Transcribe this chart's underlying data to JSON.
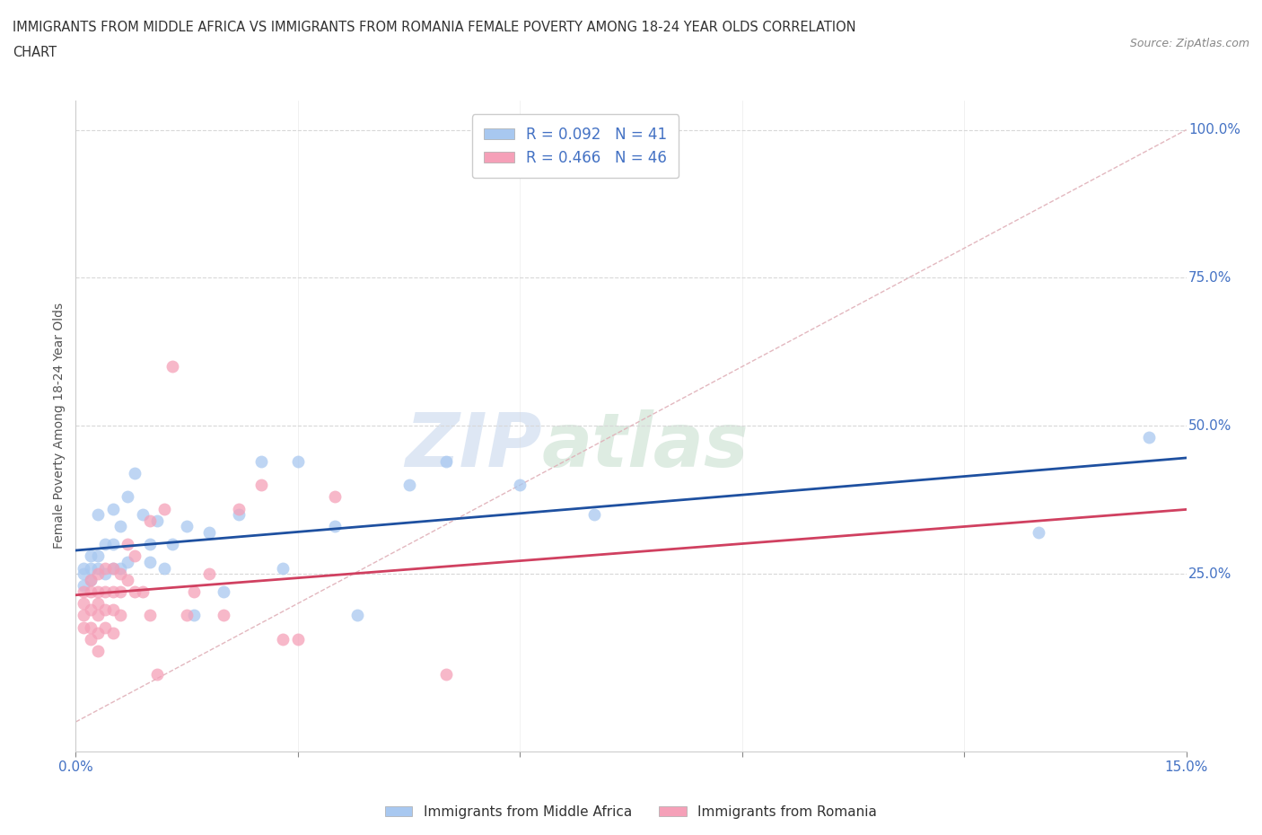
{
  "title_line1": "IMMIGRANTS FROM MIDDLE AFRICA VS IMMIGRANTS FROM ROMANIA FEMALE POVERTY AMONG 18-24 YEAR OLDS CORRELATION",
  "title_line2": "CHART",
  "source": "Source: ZipAtlas.com",
  "ylabel": "Female Poverty Among 18-24 Year Olds",
  "xlim": [
    0.0,
    0.15
  ],
  "ylim": [
    -0.05,
    1.05
  ],
  "ytick_labels_right": [
    "25.0%",
    "50.0%",
    "75.0%",
    "100.0%"
  ],
  "ytick_positions_right": [
    0.25,
    0.5,
    0.75,
    1.0
  ],
  "color_blue": "#a8c8f0",
  "color_pink": "#f5a0b8",
  "line_blue": "#1e50a0",
  "line_pink": "#d04060",
  "line_diag_color": "#e0b0b8",
  "R_blue": 0.092,
  "N_blue": 41,
  "R_pink": 0.466,
  "N_pink": 46,
  "legend_label_blue": "Immigrants from Middle Africa",
  "legend_label_pink": "Immigrants from Romania",
  "watermark_zip": "ZIP",
  "watermark_atlas": "atlas",
  "background_color": "#ffffff",
  "grid_color": "#d8d8d8",
  "blue_points_x": [
    0.001,
    0.001,
    0.001,
    0.002,
    0.002,
    0.002,
    0.003,
    0.003,
    0.003,
    0.004,
    0.004,
    0.005,
    0.005,
    0.005,
    0.006,
    0.006,
    0.007,
    0.007,
    0.008,
    0.009,
    0.01,
    0.01,
    0.011,
    0.012,
    0.013,
    0.015,
    0.016,
    0.018,
    0.02,
    0.022,
    0.025,
    0.028,
    0.03,
    0.035,
    0.038,
    0.045,
    0.05,
    0.06,
    0.07,
    0.13,
    0.145
  ],
  "blue_points_y": [
    0.26,
    0.25,
    0.23,
    0.28,
    0.26,
    0.24,
    0.35,
    0.28,
    0.26,
    0.3,
    0.25,
    0.36,
    0.3,
    0.26,
    0.33,
    0.26,
    0.38,
    0.27,
    0.42,
    0.35,
    0.3,
    0.27,
    0.34,
    0.26,
    0.3,
    0.33,
    0.18,
    0.32,
    0.22,
    0.35,
    0.44,
    0.26,
    0.44,
    0.33,
    0.18,
    0.4,
    0.44,
    0.4,
    0.35,
    0.32,
    0.48
  ],
  "pink_points_x": [
    0.001,
    0.001,
    0.001,
    0.001,
    0.002,
    0.002,
    0.002,
    0.002,
    0.002,
    0.003,
    0.003,
    0.003,
    0.003,
    0.003,
    0.003,
    0.004,
    0.004,
    0.004,
    0.004,
    0.005,
    0.005,
    0.005,
    0.005,
    0.006,
    0.006,
    0.006,
    0.007,
    0.007,
    0.008,
    0.008,
    0.009,
    0.01,
    0.01,
    0.011,
    0.012,
    0.013,
    0.015,
    0.016,
    0.018,
    0.02,
    0.022,
    0.025,
    0.028,
    0.03,
    0.035,
    0.05
  ],
  "pink_points_y": [
    0.22,
    0.2,
    0.18,
    0.16,
    0.24,
    0.22,
    0.19,
    0.16,
    0.14,
    0.25,
    0.22,
    0.2,
    0.18,
    0.15,
    0.12,
    0.26,
    0.22,
    0.19,
    0.16,
    0.26,
    0.22,
    0.19,
    0.15,
    0.25,
    0.22,
    0.18,
    0.3,
    0.24,
    0.28,
    0.22,
    0.22,
    0.34,
    0.18,
    0.08,
    0.36,
    0.6,
    0.18,
    0.22,
    0.25,
    0.18,
    0.36,
    0.4,
    0.14,
    0.14,
    0.38,
    0.08
  ],
  "xtick_pos": [
    0.0,
    0.03,
    0.06,
    0.09,
    0.12,
    0.15
  ],
  "xtick_labels": [
    "0.0%",
    "",
    "",
    "",
    "",
    "15.0%"
  ]
}
